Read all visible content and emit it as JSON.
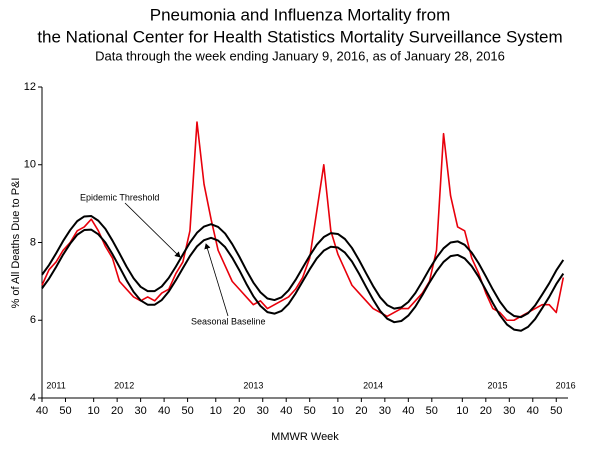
{
  "chart_data": {
    "type": "line",
    "title_lines": [
      "Pneumonia and Influenza Mortality from",
      "the National Center for Health Statistics Mortality Surveillance System"
    ],
    "subtitle": "Data through the week ending January 9, 2016, as of January 28, 2016",
    "y_label": "% of All Deaths Due to P&I",
    "x_label": "MMWR Week",
    "xlim": [
      0,
      224
    ],
    "ylim": [
      4,
      12
    ],
    "yticks": [
      4,
      6,
      8,
      10,
      12
    ],
    "xticks": [
      {
        "value": 0,
        "label": "40"
      },
      {
        "value": 10,
        "label": "50"
      },
      {
        "value": 22,
        "label": "10"
      },
      {
        "value": 32,
        "label": "20"
      },
      {
        "value": 42,
        "label": "30"
      },
      {
        "value": 52,
        "label": "40"
      },
      {
        "value": 62,
        "label": "50"
      },
      {
        "value": 74,
        "label": "10"
      },
      {
        "value": 84,
        "label": "20"
      },
      {
        "value": 94,
        "label": "30"
      },
      {
        "value": 104,
        "label": "40"
      },
      {
        "value": 114,
        "label": "50"
      },
      {
        "value": 126,
        "label": "10"
      },
      {
        "value": 136,
        "label": "20"
      },
      {
        "value": 146,
        "label": "30"
      },
      {
        "value": 156,
        "label": "40"
      },
      {
        "value": 166,
        "label": "50"
      },
      {
        "value": 179,
        "label": "10"
      },
      {
        "value": 189,
        "label": "20"
      },
      {
        "value": 199,
        "label": "30"
      },
      {
        "value": 209,
        "label": "40"
      },
      {
        "value": 219,
        "label": "50"
      }
    ],
    "year_labels": [
      {
        "x": 6,
        "label": "2011"
      },
      {
        "x": 35,
        "label": "2012"
      },
      {
        "x": 90,
        "label": "2013"
      },
      {
        "x": 141,
        "label": "2014"
      },
      {
        "x": 194,
        "label": "2015"
      },
      {
        "x": 223,
        "label": "2016"
      }
    ],
    "grid": false,
    "x": [
      0,
      3,
      6,
      9,
      12,
      15,
      18,
      21,
      24,
      27,
      30,
      33,
      36,
      39,
      42,
      45,
      48,
      51,
      54,
      57,
      60,
      63,
      66,
      69,
      72,
      75,
      78,
      81,
      84,
      87,
      90,
      93,
      96,
      99,
      102,
      105,
      108,
      111,
      114,
      117,
      120,
      123,
      126,
      129,
      132,
      135,
      138,
      141,
      144,
      147,
      150,
      153,
      156,
      159,
      162,
      165,
      168,
      171,
      174,
      177,
      180,
      183,
      186,
      189,
      192,
      195,
      198,
      201,
      204,
      207,
      210,
      213,
      216,
      219,
      222
    ],
    "series": [
      {
        "color": "#e8000b",
        "width": 1.6,
        "values": [
          6.9,
          7.3,
          7.5,
          7.8,
          8.0,
          8.3,
          8.4,
          8.6,
          8.3,
          7.9,
          7.6,
          7.0,
          6.8,
          6.6,
          6.5,
          6.6,
          6.5,
          6.7,
          6.8,
          7.2,
          7.5,
          8.3,
          11.1,
          9.5,
          8.6,
          7.8,
          7.4,
          7.0,
          6.8,
          6.6,
          6.4,
          6.5,
          6.3,
          6.4,
          6.5,
          6.6,
          6.8,
          7.1,
          7.6,
          8.8,
          10.0,
          8.3,
          7.7,
          7.3,
          6.9,
          6.7,
          6.5,
          6.3,
          6.2,
          6.1,
          6.2,
          6.3,
          6.3,
          6.5,
          6.7,
          7.0,
          7.8,
          10.8,
          9.2,
          8.4,
          8.3,
          7.6,
          7.2,
          6.7,
          6.3,
          6.2,
          6.0,
          6.0,
          6.1,
          6.2,
          6.3,
          6.4,
          6.4,
          6.2,
          7.1
        ]
      },
      {
        "name": "Epidemic Threshold",
        "color": "#000000",
        "width": 2,
        "values": [
          7.17,
          7.42,
          7.72,
          8.04,
          8.32,
          8.55,
          8.67,
          8.68,
          8.56,
          8.35,
          8.05,
          7.72,
          7.38,
          7.08,
          6.86,
          6.75,
          6.75,
          6.87,
          7.09,
          7.38,
          7.69,
          8.0,
          8.25,
          8.41,
          8.47,
          8.4,
          8.23,
          7.96,
          7.64,
          7.29,
          6.97,
          6.72,
          6.56,
          6.52,
          6.59,
          6.77,
          7.04,
          7.35,
          7.66,
          7.94,
          8.14,
          8.24,
          8.22,
          8.09,
          7.86,
          7.55,
          7.21,
          6.88,
          6.59,
          6.39,
          6.3,
          6.33,
          6.47,
          6.7,
          7.0,
          7.32,
          7.61,
          7.85,
          8.0,
          8.03,
          7.94,
          7.74,
          7.46,
          7.13,
          6.79,
          6.48,
          6.24,
          6.11,
          6.08,
          6.18,
          6.38,
          6.66,
          6.95,
          7.28,
          7.55
        ]
      },
      {
        "name": "Seasonal Baseline",
        "color": "#000000",
        "width": 2,
        "values": [
          6.82,
          7.07,
          7.37,
          7.69,
          7.97,
          8.2,
          8.32,
          8.33,
          8.21,
          8.0,
          7.7,
          7.37,
          7.03,
          6.73,
          6.51,
          6.4,
          6.4,
          6.52,
          6.74,
          7.03,
          7.34,
          7.65,
          7.9,
          8.06,
          8.12,
          8.05,
          7.88,
          7.61,
          7.29,
          6.94,
          6.62,
          6.37,
          6.21,
          6.17,
          6.24,
          6.42,
          6.69,
          7.0,
          7.31,
          7.59,
          7.79,
          7.89,
          7.87,
          7.74,
          7.51,
          7.2,
          6.86,
          6.53,
          6.24,
          6.04,
          5.95,
          5.98,
          6.12,
          6.35,
          6.65,
          6.97,
          7.26,
          7.5,
          7.65,
          7.68,
          7.59,
          7.39,
          7.11,
          6.78,
          6.44,
          6.13,
          5.89,
          5.76,
          5.73,
          5.83,
          6.03,
          6.31,
          6.6,
          6.93,
          7.2
        ]
      }
    ]
  }
}
